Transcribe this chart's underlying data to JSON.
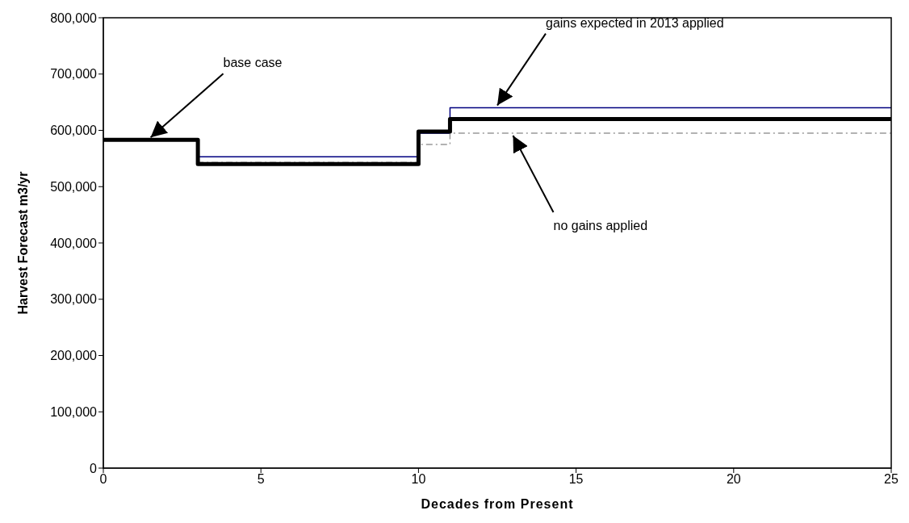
{
  "chart_data": {
    "type": "step",
    "xlabel": "Decades from Present",
    "ylabel": "Harvest Forecast m3/yr",
    "x": [
      0,
      3,
      10,
      11,
      25
    ],
    "series": [
      {
        "color": "#000080",
        "values": [
          583000,
          553000,
          595000,
          640000,
          640000
        ],
        "line_style": "solid"
      },
      {
        "color": "#999999",
        "values": [
          583000,
          543000,
          575000,
          595000,
          595000
        ],
        "line_style": "dashed"
      },
      {
        "color": "#000000",
        "values": [
          583000,
          540000,
          598000,
          620000,
          620000
        ],
        "line_style": "solid"
      }
    ],
    "xlim": [
      0,
      25
    ],
    "xticks": [
      0,
      5,
      10,
      15,
      20,
      25
    ],
    "ylim": [
      0,
      800000
    ],
    "yticks": [
      0,
      {
        "value": 100000,
        "label": "100,000"
      },
      {
        "value": 200000,
        "label": "200,000"
      },
      {
        "value": 300000,
        "label": "300,000"
      },
      {
        "value": 400000,
        "label": "400,000"
      },
      {
        "value": 500000,
        "label": "500,000"
      },
      {
        "value": 600000,
        "label": "600,000"
      },
      {
        "value": 700000,
        "label": "700,000"
      },
      {
        "value": 800000,
        "label": "800,000"
      }
    ],
    "grid": false,
    "legend": false,
    "marker": "none",
    "annotations": [
      {
        "text": "base case",
        "x": 1.5,
        "y": 583000
      },
      {
        "text": "gains expected in 2013 applied",
        "x": 12.5,
        "y": 640000
      },
      {
        "text": "no gains applied",
        "x": 13,
        "y": 595000
      }
    ]
  }
}
